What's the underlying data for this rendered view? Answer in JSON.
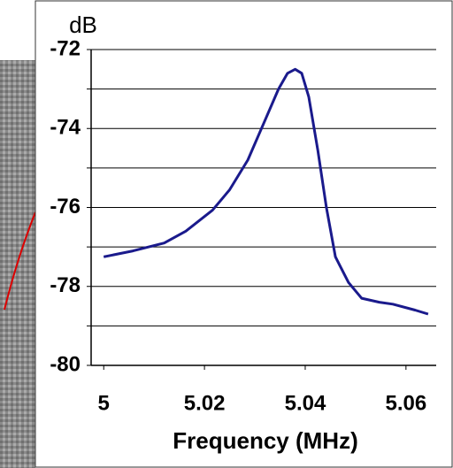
{
  "chart_data": {
    "type": "line",
    "y_label": "dB",
    "x_label": "Frequency (MHz)",
    "x": [
      5.0,
      5.0058,
      5.012,
      5.0163,
      5.0216,
      5.025,
      5.0286,
      5.032,
      5.0347,
      5.0365,
      5.038,
      5.0393,
      5.0407,
      5.0425,
      5.0442,
      5.046,
      5.0486,
      5.0512,
      5.0547,
      5.0574,
      5.0618,
      5.0644
    ],
    "values": [
      -77.25,
      -77.1,
      -76.9,
      -76.6,
      -76.07,
      -75.55,
      -74.8,
      -73.8,
      -73.0,
      -72.6,
      -72.5,
      -72.6,
      -73.2,
      -74.55,
      -76.0,
      -77.25,
      -77.9,
      -78.3,
      -78.4,
      -78.45,
      -78.6,
      -78.7
    ],
    "color": "#1a1a8c",
    "xlim": [
      4.9975,
      5.066
    ],
    "xticks": [
      5,
      5.02,
      5.04,
      5.06
    ],
    "ylim": [
      -80,
      -72
    ],
    "yticks": [
      -80,
      -78,
      -76,
      -74,
      -72
    ],
    "minor_yticks": [
      -79,
      -77,
      -75,
      -73
    ],
    "grid": true
  }
}
